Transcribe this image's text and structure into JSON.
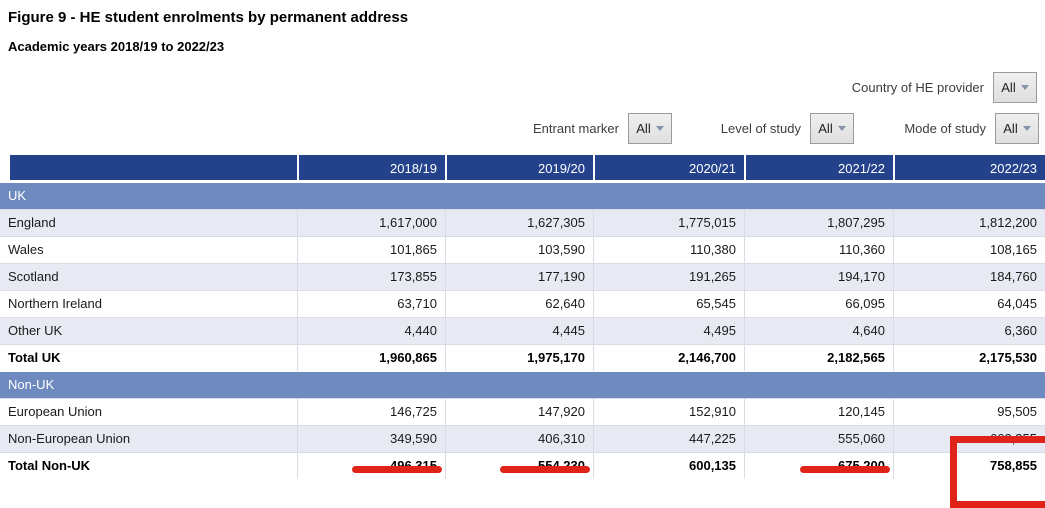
{
  "page": {
    "title": "Figure 9 - HE student enrolments by permanent address",
    "subtitle": "Academic years 2018/19 to 2022/23"
  },
  "filters": {
    "country": {
      "label": "Country of HE provider",
      "value": "All"
    },
    "entrant": {
      "label": "Entrant marker",
      "value": "All"
    },
    "level": {
      "label": "Level of study",
      "value": "All"
    },
    "mode": {
      "label": "Mode of study",
      "value": "All"
    }
  },
  "table": {
    "columns": [
      "2018/19",
      "2019/20",
      "2020/21",
      "2021/22",
      "2022/23"
    ],
    "sections": [
      {
        "header": "UK",
        "rows": [
          {
            "label": "England",
            "values": [
              "1,617,000",
              "1,627,305",
              "1,775,015",
              "1,807,295",
              "1,812,200"
            ],
            "shaded": true,
            "total": false
          },
          {
            "label": "Wales",
            "values": [
              "101,865",
              "103,590",
              "110,380",
              "110,360",
              "108,165"
            ],
            "shaded": false,
            "total": false
          },
          {
            "label": "Scotland",
            "values": [
              "173,855",
              "177,190",
              "191,265",
              "194,170",
              "184,760"
            ],
            "shaded": true,
            "total": false
          },
          {
            "label": "Northern Ireland",
            "values": [
              "63,710",
              "62,640",
              "65,545",
              "66,095",
              "64,045"
            ],
            "shaded": false,
            "total": false
          },
          {
            "label": "Other UK",
            "values": [
              "4,440",
              "4,445",
              "4,495",
              "4,640",
              "6,360"
            ],
            "shaded": true,
            "total": false
          },
          {
            "label": "Total UK",
            "values": [
              "1,960,865",
              "1,975,170",
              "2,146,700",
              "2,182,565",
              "2,175,530"
            ],
            "shaded": false,
            "total": true
          }
        ]
      },
      {
        "header": "Non-UK",
        "rows": [
          {
            "label": "European Union",
            "values": [
              "146,725",
              "147,920",
              "152,910",
              "120,145",
              "95,505"
            ],
            "shaded": false,
            "total": false
          },
          {
            "label": "Non-European Union",
            "values": [
              "349,590",
              "406,310",
              "447,225",
              "555,060",
              "663,355"
            ],
            "shaded": true,
            "total": false
          },
          {
            "label": "Total Non-UK",
            "values": [
              "496,315",
              "554,230",
              "600,135",
              "675,200",
              "758,855"
            ],
            "shaded": false,
            "total": true
          }
        ]
      }
    ]
  },
  "annotations": {
    "row_label": "Total Non-UK",
    "underline_year_indexes": [
      0,
      1,
      3
    ],
    "box_year_index": 4,
    "color": "#e02318"
  },
  "colors": {
    "header_bg": "#24428c",
    "section_bg": "#6e8abe",
    "alt_row_bg": "#e8eaf3"
  }
}
